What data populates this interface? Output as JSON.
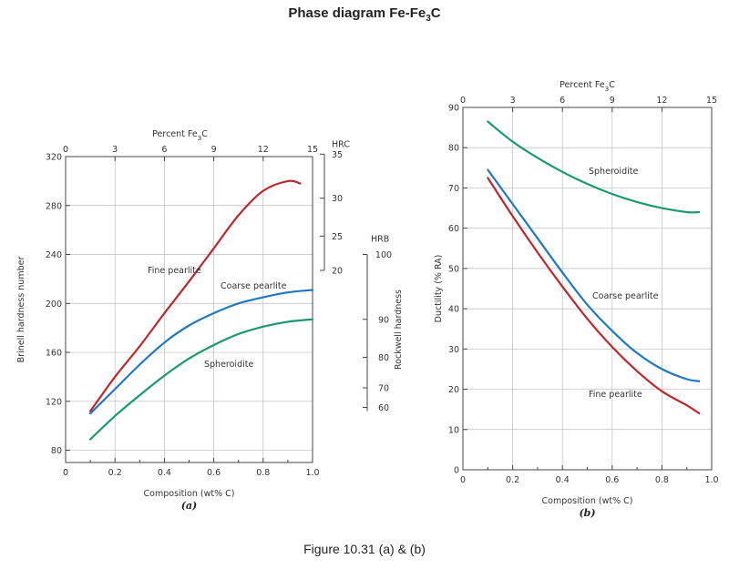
{
  "title": "Phase diagram Fe-Fe",
  "title_sub": "3",
  "title_tail": "C",
  "caption": "Figure 10.31 (a) & (b)",
  "colors": {
    "fine_pearlite": "#c0272d",
    "coarse_pearlite": "#1f78c1",
    "spheroidite": "#1a9a6c",
    "axis": "#444444",
    "grid": "#bbbbbb"
  },
  "chart_data": [
    {
      "type": "line",
      "panel_label": "(a)",
      "xlabel": "Composition (wt% C)",
      "ylabel": "Brinell hardness number",
      "xlim": [
        0,
        1.0
      ],
      "ylim": [
        70,
        320
      ],
      "x_ticks": [
        "0",
        "0.2",
        "0.4",
        "0.6",
        "0.8",
        "1.0"
      ],
      "y_ticks": [
        "80",
        "120",
        "160",
        "200",
        "240",
        "280",
        "320"
      ],
      "top_axis": {
        "label_main": "Percent Fe",
        "label_sub": "3",
        "label_tail": "C",
        "ticks": [
          "0",
          "3",
          "6",
          "9",
          "12",
          "15"
        ]
      },
      "hrc_axis": {
        "label": "HRC",
        "ticks": [
          "35",
          "30",
          "25",
          "20"
        ]
      },
      "hrb_axis": {
        "label": "HRB",
        "ticks": [
          "100",
          "90",
          "80",
          "70",
          "60"
        ]
      },
      "secondary_label": "Rockwell hardness",
      "series": [
        {
          "name": "Fine pearlite",
          "x": [
            0.1,
            0.2,
            0.3,
            0.4,
            0.5,
            0.6,
            0.7,
            0.8,
            0.9,
            0.95
          ],
          "y": [
            112,
            140,
            165,
            192,
            218,
            245,
            272,
            292,
            300,
            298
          ]
        },
        {
          "name": "Coarse pearlite",
          "x": [
            0.1,
            0.2,
            0.3,
            0.4,
            0.5,
            0.6,
            0.7,
            0.8,
            0.9,
            1.0
          ],
          "y": [
            110,
            130,
            150,
            168,
            182,
            192,
            200,
            205,
            209,
            211
          ]
        },
        {
          "name": "Spheroidite",
          "x": [
            0.1,
            0.2,
            0.3,
            0.4,
            0.5,
            0.6,
            0.7,
            0.8,
            0.9,
            1.0
          ],
          "y": [
            89,
            108,
            125,
            141,
            155,
            166,
            175,
            181,
            185,
            187
          ]
        }
      ]
    },
    {
      "type": "line",
      "panel_label": "(b)",
      "xlabel": "Composition (wt% C)",
      "ylabel": "Ductility (% RA)",
      "xlim": [
        0,
        1.0
      ],
      "ylim": [
        0,
        90
      ],
      "x_ticks": [
        "0",
        "0.2",
        "0.4",
        "0.6",
        "0.8",
        "1.0"
      ],
      "y_ticks": [
        "0",
        "10",
        "20",
        "30",
        "40",
        "50",
        "60",
        "70",
        "80",
        "90"
      ],
      "top_axis": {
        "label_main": "Percent Fe",
        "label_sub": "3",
        "label_tail": "C",
        "ticks": [
          "0",
          "3",
          "6",
          "9",
          "12",
          "15"
        ]
      },
      "series": [
        {
          "name": "Spheroidite",
          "x": [
            0.1,
            0.2,
            0.3,
            0.4,
            0.5,
            0.6,
            0.7,
            0.8,
            0.9,
            0.95
          ],
          "y": [
            86.5,
            81.5,
            77.5,
            74,
            71,
            68.5,
            66.5,
            65,
            64,
            64
          ]
        },
        {
          "name": "Coarse pearlite",
          "x": [
            0.1,
            0.2,
            0.3,
            0.4,
            0.5,
            0.6,
            0.7,
            0.8,
            0.9,
            0.95
          ],
          "y": [
            74.5,
            66,
            57.5,
            49,
            41,
            34.5,
            29,
            25,
            22.5,
            22
          ]
        },
        {
          "name": "Fine pearlite",
          "x": [
            0.1,
            0.2,
            0.3,
            0.4,
            0.5,
            0.6,
            0.7,
            0.8,
            0.9,
            0.95
          ],
          "y": [
            72.5,
            63,
            54,
            45.5,
            37.5,
            30.5,
            24.5,
            19.5,
            16,
            14
          ]
        }
      ]
    }
  ]
}
